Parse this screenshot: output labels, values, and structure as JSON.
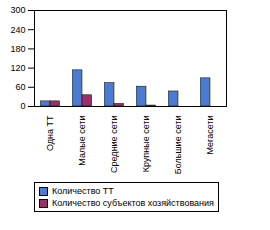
{
  "chart_data": {
    "type": "bar",
    "categories": [
      "Одна ТТ",
      "Малые сети",
      "Средние сети",
      "Крупные сети",
      "Большие сети",
      "Мегасети"
    ],
    "series": [
      {
        "name": "Количество ТТ",
        "color": "#4a7bd0",
        "values": [
          16,
          113,
          73,
          62,
          47,
          88
        ]
      },
      {
        "name": "Количество субъектов хозяйствования",
        "color": "#9b2f6a",
        "values": [
          16,
          35,
          8,
          3,
          0,
          0
        ]
      }
    ],
    "ylim": [
      0,
      300
    ],
    "yticks": [
      0,
      60,
      120,
      180,
      240,
      300
    ],
    "grid": false,
    "legend": "bottom"
  }
}
